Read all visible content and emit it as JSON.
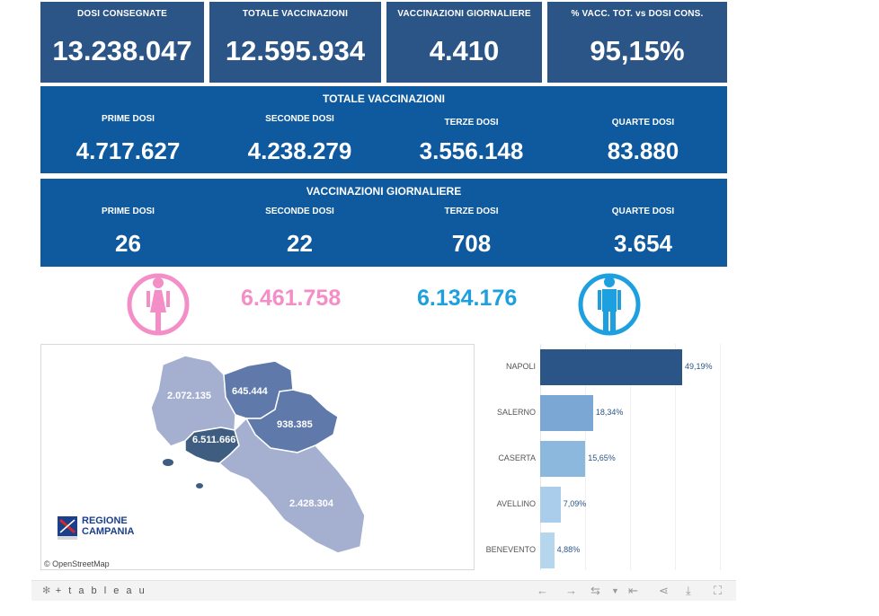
{
  "kpis": [
    {
      "label": "DOSI  CONSEGNATE",
      "value": "13.238.047"
    },
    {
      "label": "TOTALE VACCINAZIONI",
      "value": "12.595.934"
    },
    {
      "label": "VACCINAZIONI GIORNALIERE",
      "value": "4.410"
    },
    {
      "label": "% VACC. TOT. vs DOSI CONS.",
      "value": "95,15%"
    }
  ],
  "totale": {
    "title": "TOTALE VACCINAZIONI",
    "cells": [
      {
        "label": "PRIME DOSI",
        "value": "4.717.627"
      },
      {
        "label": "SECONDE DOSI",
        "value": "4.238.279"
      },
      {
        "label": "TERZE DOSI",
        "value": "3.556.148"
      },
      {
        "label": "QUARTE DOSI",
        "value": "83.880"
      }
    ]
  },
  "giornaliere": {
    "title": "VACCINAZIONI GIORNALIERE",
    "cells": [
      {
        "label": "PRIME DOSI",
        "value": "26"
      },
      {
        "label": "SECONDE DOSI",
        "value": "22"
      },
      {
        "label": "TERZE DOSI",
        "value": "708"
      },
      {
        "label": "QUARTE DOSI",
        "value": "3.654"
      }
    ]
  },
  "gender": {
    "female_value": "6.461.758",
    "female_color": "#f48ec7",
    "female_icon": "female-icon",
    "male_value": "6.134.176",
    "male_color": "#1ea0e0",
    "male_icon": "male-icon"
  },
  "map": {
    "labels": {
      "caserta": "2.072.135",
      "benevento": "645.444",
      "avellino": "938.385",
      "napoli": "6.511.666",
      "salerno": "2.428.304"
    },
    "attribution": "© OpenStreetMap",
    "logo_line1": "REGIONE",
    "logo_line2": "CAMPANIA"
  },
  "chart_data": {
    "type": "bar",
    "orientation": "horizontal",
    "categories": [
      "NAPOLI",
      "SALERNO",
      "CASERTA",
      "AVELLINO",
      "BENEVENTO"
    ],
    "values": [
      49.19,
      18.34,
      15.65,
      7.09,
      4.88
    ],
    "value_labels": [
      "49,19%",
      "18,34%",
      "15,65%",
      "7,09%",
      "4,88%"
    ],
    "colors": [
      "#2a5586",
      "#7ba7d4",
      "#8db8de",
      "#a9cdea",
      "#b6d6ee"
    ]
  },
  "footer": {
    "brand": "+ t a b l e a u"
  },
  "colors": {
    "kpi_bg": "#2a5586",
    "panel_bg": "#0f5a9e",
    "map_dark": "#3f5d80",
    "map_mid": "#5e79aa",
    "map_light": "#a5b0d0"
  }
}
